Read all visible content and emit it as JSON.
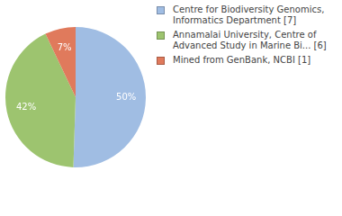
{
  "chart_data": {
    "type": "pie",
    "categories": [
      "Centre for Biodiversity Genomics, Informatics Department [7]",
      "Annamalai University, Centre of Advanced Study in Marine Bi... [6]",
      "Mined from GenBank, NCBI [1]"
    ],
    "values": [
      50,
      42,
      7
    ],
    "value_labels": [
      "50%",
      "42%",
      "7%"
    ],
    "colors": [
      "#a0bde3",
      "#9dc46f",
      "#e07a5c"
    ],
    "data_labels": true,
    "legend": "right"
  }
}
